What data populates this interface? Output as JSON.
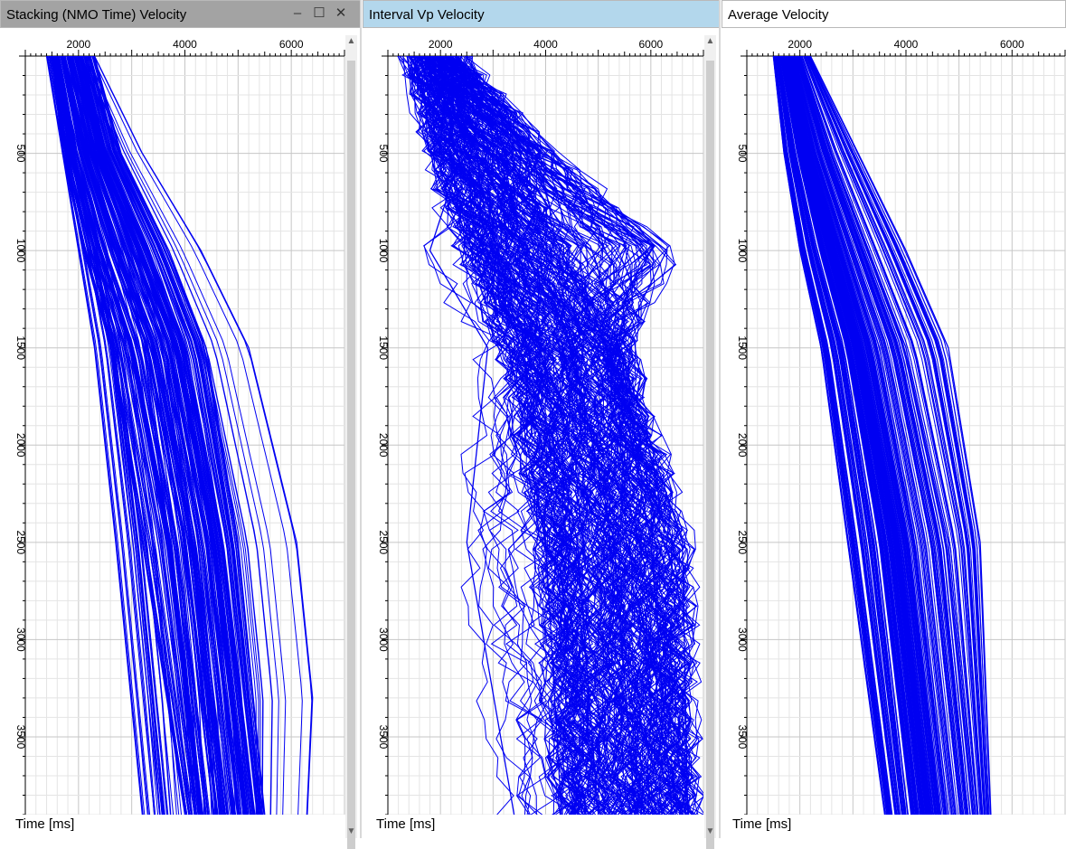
{
  "colors": {
    "curve": "#0000f2",
    "grid_minor": "#e4e4e4",
    "grid_major": "#c6c6c6",
    "active_title": "#b3d7ec",
    "inactive_title": "#ffffff",
    "primary_title": "#a3a3a3"
  },
  "icons": {
    "minimize": "minimize-icon",
    "maximize": "maximize-icon",
    "close": "close-icon"
  },
  "window_buttons": {
    "minimize": "–",
    "maximize": "☐",
    "close": "✕"
  },
  "panels": [
    {
      "title": "Stacking (NMO Time) Velocity",
      "time_label": "Time [ms]",
      "x_ticks": [
        "2000",
        "4000",
        "6000"
      ],
      "y_ticks": [
        "500",
        "1000",
        "1500",
        "2000",
        "2500",
        "3000",
        "3500"
      ]
    },
    {
      "title": "Interval Vp Velocity",
      "time_label": "Time [ms]",
      "x_ticks": [
        "2000",
        "4000",
        "6000"
      ],
      "y_ticks": [
        "500",
        "1000",
        "1500",
        "2000",
        "2500",
        "3000",
        "3500"
      ]
    },
    {
      "title": "Average Velocity",
      "time_label": "Time [ms]",
      "x_ticks": [
        "2000",
        "4000",
        "6000"
      ],
      "y_ticks": [
        "500",
        "1000",
        "1500",
        "2000",
        "2500",
        "3000",
        "3500"
      ]
    }
  ],
  "chart_data": [
    {
      "type": "line",
      "title": "Stacking (NMO Time) Velocity",
      "ylabel": "Time [ms]",
      "xlim": [
        1000,
        7000
      ],
      "ylim": [
        3900,
        0
      ],
      "y_reversed": true,
      "grid": true,
      "series": [
        {
          "x": [
            1500,
            1700,
            2100,
            2600,
            3200,
            4000
          ],
          "y": [
            0,
            500,
            1000,
            1500,
            2500,
            3900
          ]
        },
        {
          "x": [
            1600,
            1900,
            2400,
            3000,
            3700,
            4300
          ],
          "y": [
            0,
            500,
            1000,
            1500,
            2500,
            3900
          ]
        },
        {
          "x": [
            1700,
            2100,
            2700,
            3400,
            4100,
            4700
          ],
          "y": [
            0,
            500,
            1000,
            1500,
            2500,
            3900
          ]
        },
        {
          "x": [
            1850,
            2300,
            3000,
            3700,
            4400,
            5000
          ],
          "y": [
            0,
            500,
            1000,
            1500,
            2500,
            3900
          ]
        },
        {
          "x": [
            2050,
            2500,
            3300,
            4000,
            4700,
            5300
          ],
          "y": [
            0,
            500,
            1000,
            1500,
            2500,
            3900
          ]
        },
        {
          "x": [
            2300,
            2800,
            3700,
            4400,
            5000,
            5500
          ],
          "y": [
            0,
            500,
            1000,
            1500,
            2500,
            3900
          ]
        },
        {
          "x": [
            1400,
            1700,
            2000,
            2300,
            2700,
            3200
          ],
          "y": [
            0,
            500,
            1000,
            1500,
            2500,
            3900
          ]
        },
        {
          "x": [
            2300,
            3200,
            4300,
            5200,
            6100,
            6400,
            6300
          ],
          "y": [
            0,
            500,
            1000,
            1500,
            2500,
            3300,
            3900
          ]
        }
      ]
    },
    {
      "type": "line",
      "title": "Interval Vp Velocity",
      "ylabel": "Time [ms]",
      "xlim": [
        1000,
        7000
      ],
      "ylim": [
        3900,
        0
      ],
      "y_reversed": true,
      "grid": true,
      "series": [
        {
          "x": [
            1500,
            1900,
            2600,
            3300,
            4000,
            4300
          ],
          "y": [
            0,
            500,
            1000,
            1500,
            2500,
            3900
          ]
        },
        {
          "x": [
            1700,
            2300,
            3000,
            3900,
            4600,
            5000
          ],
          "y": [
            0,
            500,
            1000,
            1500,
            2500,
            3900
          ]
        },
        {
          "x": [
            1900,
            2700,
            3600,
            4500,
            5300,
            5700
          ],
          "y": [
            0,
            500,
            1000,
            1500,
            2500,
            3900
          ]
        },
        {
          "x": [
            2100,
            3300,
            4300,
            5300,
            6000,
            6400
          ],
          "y": [
            0,
            500,
            1000,
            1500,
            2500,
            3900
          ]
        },
        {
          "x": [
            2300,
            4000,
            6300,
            5400,
            6600,
            6700
          ],
          "y": [
            0,
            500,
            1000,
            1500,
            2500,
            3900
          ]
        },
        {
          "x": [
            1800,
            2400,
            1800,
            2900,
            2500,
            3400
          ],
          "y": [
            0,
            500,
            1000,
            1500,
            2500,
            3900
          ]
        }
      ]
    },
    {
      "type": "line",
      "title": "Average Velocity",
      "ylabel": "Time [ms]",
      "xlim": [
        1000,
        7000
      ],
      "ylim": [
        3900,
        0
      ],
      "y_reversed": true,
      "grid": true,
      "series": [
        {
          "x": [
            1500,
            1700,
            2000,
            2400,
            2900,
            3600
          ],
          "y": [
            0,
            500,
            1000,
            1500,
            2500,
            3900
          ]
        },
        {
          "x": [
            1600,
            1900,
            2300,
            2800,
            3400,
            4000
          ],
          "y": [
            0,
            500,
            1000,
            1500,
            2500,
            3900
          ]
        },
        {
          "x": [
            1700,
            2100,
            2600,
            3100,
            3800,
            4400
          ],
          "y": [
            0,
            500,
            1000,
            1500,
            2500,
            3900
          ]
        },
        {
          "x": [
            1850,
            2300,
            2900,
            3500,
            4200,
            4800
          ],
          "y": [
            0,
            500,
            1000,
            1500,
            2500,
            3900
          ]
        },
        {
          "x": [
            2000,
            2600,
            3300,
            4000,
            4800,
            5300
          ],
          "y": [
            0,
            500,
            1000,
            1500,
            2500,
            3900
          ]
        },
        {
          "x": [
            2200,
            3100,
            4000,
            4800,
            5400,
            5600
          ],
          "y": [
            0,
            500,
            1000,
            1500,
            2500,
            3900
          ]
        }
      ]
    }
  ]
}
